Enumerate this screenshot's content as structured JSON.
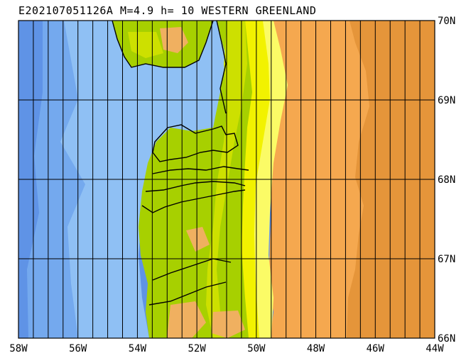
{
  "title": "E202107051126A M=4.9 h= 10 WESTERN GREENLAND",
  "map": {
    "lon_labels": [
      "58W",
      "56W",
      "54W",
      "52W",
      "50W",
      "48W",
      "46W",
      "44W"
    ],
    "lat_labels": [
      "70N",
      "69N",
      "68N",
      "67N",
      "66N"
    ],
    "lon_range": [
      -58,
      -44
    ],
    "lat_range": [
      66,
      70
    ],
    "grid_lon_step_deg": 0.5,
    "grid_lat_step_deg": 1,
    "colors": {
      "deep_ocean": "#5f93e6",
      "ocean": "#74a9ee",
      "shallow_ocean": "#8fc0f4",
      "lowland_green": "#a7d000",
      "green_light": "#cde000",
      "yellow": "#f2f200",
      "pale_yellow": "#fbfb66",
      "tan": "#f0b060",
      "orange": "#f5a84f",
      "dark_orange": "#e5953a",
      "coast": "#000000"
    }
  }
}
